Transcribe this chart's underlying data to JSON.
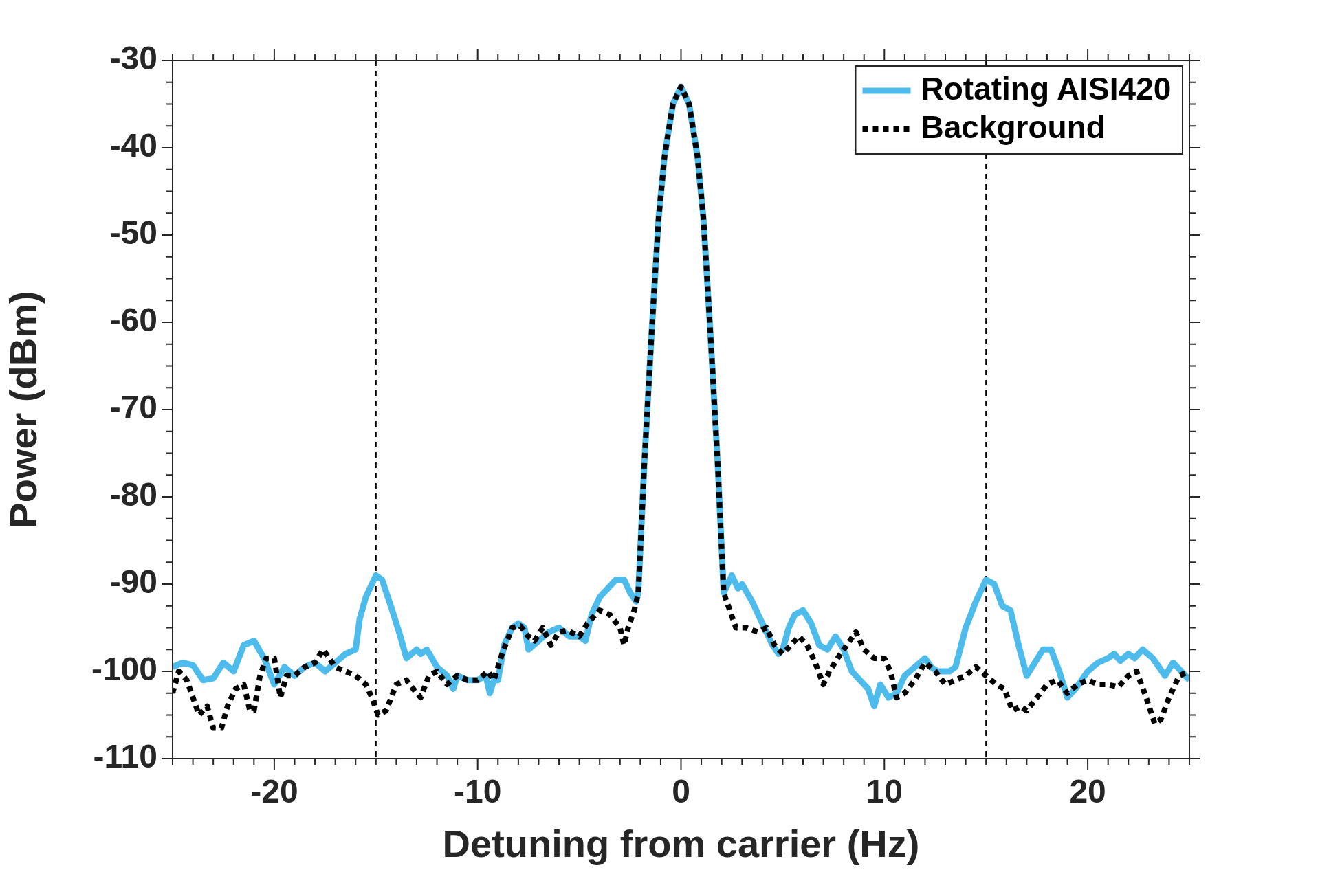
{
  "chart_data": {
    "type": "line",
    "xlabel": "Detuning from carrier (Hz)",
    "ylabel": "Power (dBm)",
    "legend": "top right",
    "xlim": [
      -25,
      25
    ],
    "xticks": [
      {
        "value": -25,
        "label": null
      },
      {
        "value": -24,
        "label": null
      },
      {
        "value": -23,
        "label": null
      },
      {
        "value": -22,
        "label": null
      },
      {
        "value": -21,
        "label": null
      },
      -20,
      {
        "value": -19,
        "label": null
      },
      {
        "value": -18,
        "label": null
      },
      {
        "value": -17,
        "label": null
      },
      {
        "value": -16,
        "label": null
      },
      {
        "value": -15,
        "label": null
      },
      {
        "value": -14,
        "label": null
      },
      {
        "value": -13,
        "label": null
      },
      {
        "value": -12,
        "label": null
      },
      {
        "value": -11,
        "label": null
      },
      -10,
      {
        "value": -9,
        "label": null
      },
      {
        "value": -8,
        "label": null
      },
      {
        "value": -7,
        "label": null
      },
      {
        "value": -6,
        "label": null
      },
      {
        "value": -5,
        "label": null
      },
      {
        "value": -4,
        "label": null
      },
      {
        "value": -3,
        "label": null
      },
      {
        "value": -2,
        "label": null
      },
      {
        "value": -1,
        "label": null
      },
      0,
      {
        "value": 1,
        "label": null
      },
      {
        "value": 2,
        "label": null
      },
      {
        "value": 3,
        "label": null
      },
      {
        "value": 4,
        "label": null
      },
      {
        "value": 5,
        "label": null
      },
      {
        "value": 6,
        "label": null
      },
      {
        "value": 7,
        "label": null
      },
      {
        "value": 8,
        "label": null
      },
      {
        "value": 9,
        "label": null
      },
      10,
      {
        "value": 11,
        "label": null
      },
      {
        "value": 12,
        "label": null
      },
      {
        "value": 13,
        "label": null
      },
      {
        "value": 14,
        "label": null
      },
      {
        "value": 15,
        "label": null
      },
      {
        "value": 16,
        "label": null
      },
      {
        "value": 17,
        "label": null
      },
      {
        "value": 18,
        "label": null
      },
      {
        "value": 19,
        "label": null
      },
      20,
      {
        "value": 21,
        "label": null
      },
      {
        "value": 22,
        "label": null
      },
      {
        "value": 23,
        "label": null
      },
      {
        "value": 24,
        "label": null
      },
      {
        "value": 25,
        "label": null
      }
    ],
    "ylim": [
      -110,
      -30
    ],
    "yticks": [
      -110,
      {
        "value": -107.5,
        "label": null
      },
      {
        "value": -105,
        "label": null
      },
      {
        "value": -102.5,
        "label": null
      },
      -100,
      {
        "value": -97.5,
        "label": null
      },
      {
        "value": -95,
        "label": null
      },
      {
        "value": -92.5,
        "label": null
      },
      -90,
      {
        "value": -87.5,
        "label": null
      },
      {
        "value": -85,
        "label": null
      },
      {
        "value": -82.5,
        "label": null
      },
      -80,
      {
        "value": -77.5,
        "label": null
      },
      {
        "value": -75,
        "label": null
      },
      {
        "value": -72.5,
        "label": null
      },
      -70,
      {
        "value": -67.5,
        "label": null
      },
      {
        "value": -65,
        "label": null
      },
      {
        "value": -62.5,
        "label": null
      },
      -60,
      {
        "value": -57.5,
        "label": null
      },
      {
        "value": -55,
        "label": null
      },
      {
        "value": -52.5,
        "label": null
      },
      -50,
      {
        "value": -47.5,
        "label": null
      },
      {
        "value": -45,
        "label": null
      },
      {
        "value": -42.5,
        "label": null
      },
      -40,
      {
        "value": -37.5,
        "label": null
      },
      {
        "value": -35,
        "label": null
      },
      {
        "value": -32.5,
        "label": null
      },
      -30
    ],
    "ref_lines": [
      {
        "axis": "x",
        "value": -15,
        "color": "#000000",
        "line_style": "dotted"
      },
      {
        "axis": "x",
        "value": 15,
        "color": "#000000",
        "line_style": "dotted"
      }
    ],
    "series": [
      {
        "name": "Rotating AISI420",
        "color": "#4dbbeb",
        "line_style": "solid",
        "x": [
          -25,
          -24.5,
          -24,
          -23.5,
          -23,
          -22.5,
          -22,
          -21.5,
          -21,
          -20.5,
          -20,
          -19.5,
          -19,
          -18.5,
          -18,
          -17.5,
          -17,
          -16.5,
          -16,
          -15.8,
          -15.5,
          -15,
          -14.7,
          -14.2,
          -13.8,
          -13.5,
          -13,
          -12.8,
          -12.5,
          -12,
          -11.5,
          -11.2,
          -11,
          -10.5,
          -10,
          -9.6,
          -9.4,
          -9.2,
          -9,
          -8.7,
          -8.3,
          -8,
          -7.7,
          -7.5,
          -7,
          -6.5,
          -6,
          -5.5,
          -5,
          -4.7,
          -4.4,
          -4,
          -3.6,
          -3.2,
          -2.8,
          -2.5,
          -2.2,
          -2.1,
          -2,
          -1.8,
          -1.44,
          -1.1,
          -0.81,
          -0.4,
          0,
          0.4,
          0.81,
          1.1,
          1.44,
          1.8,
          2,
          2.1,
          2.3,
          2.5,
          2.8,
          3,
          3.5,
          4,
          4.5,
          4.8,
          5,
          5.3,
          5.6,
          6,
          6.4,
          6.8,
          7.2,
          7.6,
          8,
          8.4,
          8.8,
          9.2,
          9.5,
          9.8,
          10.2,
          10.6,
          11,
          11.5,
          12,
          12.3,
          12.6,
          13.2,
          13.5,
          14,
          14.5,
          15,
          15.4,
          15.8,
          16.2,
          16.6,
          17,
          17.4,
          17.8,
          18.2,
          18.6,
          19,
          19.4,
          20,
          20.5,
          21,
          21.3,
          21.6,
          22,
          22.3,
          22.7,
          23.2,
          23.8,
          24.2,
          24.6,
          25
        ],
        "values": [
          -99.5,
          -99,
          -99.3,
          -101,
          -100.8,
          -99,
          -100,
          -97,
          -96.5,
          -98.5,
          -101.5,
          -99.5,
          -100.5,
          -99.5,
          -99,
          -100,
          -99,
          -98,
          -97.5,
          -94,
          -91.5,
          -89,
          -89.5,
          -93,
          -96,
          -98.5,
          -97.5,
          -98,
          -97.5,
          -99.5,
          -100.5,
          -102,
          -100.5,
          -101,
          -101,
          -100.5,
          -102.5,
          -101,
          -101,
          -97,
          -95,
          -94.5,
          -95,
          -97.5,
          -96.5,
          -95.5,
          -95,
          -96,
          -96,
          -96.5,
          -93.5,
          -91.5,
          -90.5,
          -89.5,
          -89.5,
          -91,
          -92,
          -91,
          -86,
          -76,
          -61,
          -48,
          -41,
          -35,
          -33,
          -35,
          -41,
          -48,
          -61,
          -76,
          -86,
          -91,
          -90,
          -89,
          -90.5,
          -90,
          -92,
          -94.5,
          -97,
          -98,
          -97.5,
          -95,
          -93.5,
          -93,
          -94.5,
          -97,
          -97.5,
          -96,
          -97.5,
          -100,
          -101,
          -102,
          -104,
          -101.5,
          -103,
          -102.5,
          -100.5,
          -99.5,
          -98.5,
          -99.5,
          -100,
          -100,
          -99.5,
          -95,
          -92,
          -89.5,
          -90,
          -92.5,
          -93,
          -97,
          -100.5,
          -99,
          -97.5,
          -97.5,
          -100,
          -103,
          -102,
          -100,
          -99,
          -98.5,
          -98,
          -98.8,
          -98,
          -98.5,
          -97.5,
          -98.5,
          -100.5,
          -99,
          -100,
          -101
        ]
      },
      {
        "name": "Background",
        "color": "#000000",
        "line_style": "dotted",
        "x": [
          -25,
          -24.7,
          -24.3,
          -24,
          -23.7,
          -23.3,
          -23,
          -22.6,
          -22.3,
          -21.9,
          -21.5,
          -21.2,
          -21,
          -20.7,
          -20.4,
          -20,
          -19.7,
          -19.4,
          -19,
          -18.5,
          -18,
          -17.6,
          -17,
          -16.5,
          -16,
          -15.5,
          -15.2,
          -14.9,
          -14.5,
          -14,
          -13.5,
          -13,
          -12.8,
          -12.4,
          -12,
          -11.5,
          -11,
          -10.5,
          -10,
          -9.5,
          -9.2,
          -8.8,
          -8.3,
          -7.9,
          -7.5,
          -7.2,
          -6.8,
          -6.4,
          -6,
          -5.6,
          -5,
          -4.6,
          -4,
          -3.5,
          -3,
          -2.8,
          -2.6,
          -2.3,
          -2.1,
          -2,
          -1.8,
          -1.44,
          -1.1,
          -0.81,
          -0.4,
          0,
          0.4,
          0.81,
          1.1,
          1.44,
          1.8,
          2,
          2.1,
          2.4,
          2.7,
          3.2,
          3.8,
          4.2,
          4.6,
          5,
          5.4,
          5.8,
          6.2,
          6.6,
          7,
          7.3,
          7.7,
          8,
          8.6,
          9,
          9.5,
          10,
          10.3,
          10.6,
          11,
          11.5,
          12,
          12.5,
          13,
          13.5,
          14,
          14.5,
          15,
          15.5,
          15.9,
          16.3,
          16.7,
          17,
          17.5,
          18,
          18.5,
          19,
          19.5,
          20,
          20.5,
          21,
          21.5,
          22,
          22.4,
          22.8,
          23.3,
          23.6,
          24,
          24.5,
          25
        ],
        "values": [
          -102.5,
          -100,
          -101,
          -103,
          -105,
          -104,
          -106.5,
          -106.5,
          -104,
          -102,
          -101.5,
          -104.5,
          -104.5,
          -100.5,
          -98.5,
          -98.5,
          -103,
          -100.5,
          -100.5,
          -99.5,
          -99,
          -97.5,
          -99.5,
          -100,
          -100.5,
          -101.5,
          -103,
          -105,
          -104.5,
          -101.5,
          -101,
          -102.5,
          -103,
          -100.5,
          -100,
          -101.5,
          -100.5,
          -101,
          -101,
          -100,
          -101,
          -98,
          -95,
          -94.8,
          -96,
          -96.5,
          -95,
          -97,
          -95.5,
          -95.3,
          -96,
          -94.5,
          -93,
          -93.5,
          -95,
          -97,
          -95,
          -93,
          -91,
          -86,
          -76,
          -61,
          -48,
          -41,
          -35,
          -33,
          -35,
          -41,
          -48,
          -61,
          -76,
          -86,
          -91,
          -93,
          -95,
          -95,
          -95.5,
          -95,
          -97,
          -98,
          -97,
          -96,
          -97,
          -99,
          -101.5,
          -100,
          -98.5,
          -97.5,
          -95.5,
          -97.5,
          -98.5,
          -98.5,
          -100,
          -103,
          -102.5,
          -101,
          -99,
          -100,
          -101.5,
          -101,
          -100.5,
          -99.5,
          -100.5,
          -101.5,
          -102,
          -104.5,
          -104,
          -104.5,
          -103,
          -101.5,
          -101,
          -102.5,
          -101.5,
          -101,
          -101.5,
          -101.5,
          -101.8,
          -100.5,
          -100,
          -102.5,
          -106,
          -105.5,
          -103,
          -100.5,
          -100
        ]
      }
    ]
  }
}
